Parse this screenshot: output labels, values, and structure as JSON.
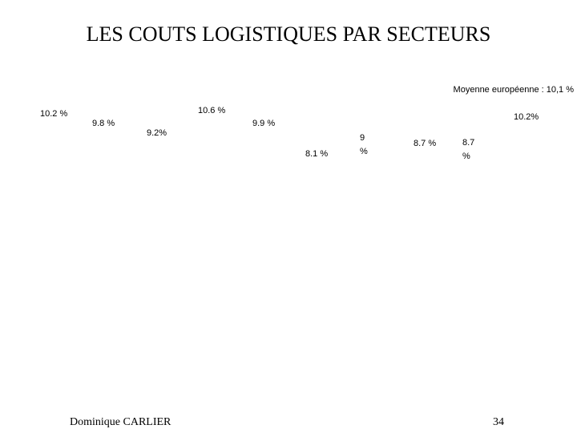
{
  "header": {
    "title": "LES COUTS LOGISTIQUES PAR SECTEURS",
    "note": "Moyenne européenne : 10,1 %"
  },
  "labels": [
    "10.2 %",
    "9.8 %",
    "9.2%",
    "10.6 %",
    "9.9 %",
    "8.1 %",
    "9 %",
    "8.7 %",
    "8.7 %",
    "10.2%"
  ],
  "footer": {
    "author": "Dominique CARLIER",
    "page": "34"
  }
}
